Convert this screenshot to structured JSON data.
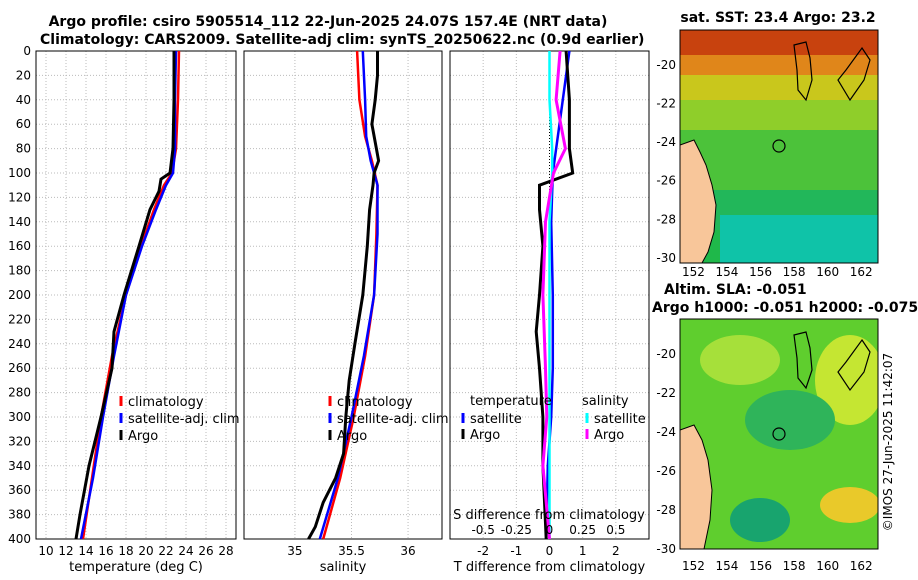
{
  "header": {
    "title_line1": "Argo profile: csiro 5905514_112 22-Jun-2025 24.07S 157.4E (NRT data)",
    "title_line2": "Climatology: CARS2009. Satellite-adj clim: synTS_20250622.nc (0.9d earlier)"
  },
  "maps": {
    "sst_title": "sat. SST: 23.4 Argo: 23.2",
    "sla_title_line1": "Altim. SLA: -0.051",
    "sla_title_line2": "Argo h1000: -0.051 h2000: -0.075",
    "x_ticks": [
      "152",
      "154",
      "156",
      "158",
      "160",
      "162"
    ],
    "y_ticks": [
      "-20",
      "-22",
      "-24",
      "-26",
      "-28",
      "-30"
    ]
  },
  "footer": {
    "credit": "©IMOS 27-Jun-2025 11:42:07"
  },
  "colors": {
    "climatology": "#ff0000",
    "satellite": "#0000ff",
    "argo": "#000000",
    "sat_salinity": "#00ffff",
    "argo_salinity": "#ff00ff",
    "land": "#f8c69a"
  },
  "chart_data": [
    {
      "type": "line",
      "xlabel": "temperature (deg C)",
      "ylabel": "",
      "xlim": [
        9,
        29
      ],
      "ylim": [
        400,
        0
      ],
      "x_ticks": [
        "10",
        "12",
        "14",
        "16",
        "18",
        "20",
        "22",
        "24",
        "26",
        "28"
      ],
      "y_ticks": [
        "0",
        "20",
        "40",
        "60",
        "80",
        "100",
        "120",
        "140",
        "160",
        "180",
        "200",
        "220",
        "240",
        "260",
        "280",
        "300",
        "320",
        "340",
        "360",
        "380",
        "400"
      ],
      "legend": [
        "climatology",
        "satellite-adj. clim",
        "Argo"
      ],
      "series": [
        {
          "name": "climatology",
          "depth": [
            0,
            40,
            80,
            100,
            110,
            130,
            160,
            200,
            250,
            300,
            350,
            400
          ],
          "values": [
            23.3,
            23.2,
            23.0,
            22.6,
            21.8,
            20.8,
            19.5,
            18.0,
            16.6,
            15.5,
            14.6,
            13.7
          ]
        },
        {
          "name": "satellite-adj. clim",
          "depth": [
            0,
            40,
            80,
            100,
            110,
            130,
            160,
            200,
            250,
            300,
            350,
            400
          ],
          "values": [
            23.0,
            22.9,
            22.9,
            22.7,
            22.0,
            21.0,
            19.6,
            18.0,
            16.8,
            15.7,
            14.7,
            13.5
          ]
        },
        {
          "name": "Argo",
          "depth": [
            0,
            40,
            80,
            100,
            105,
            115,
            130,
            160,
            200,
            230,
            260,
            300,
            340,
            380,
            400
          ],
          "values": [
            22.8,
            22.8,
            22.7,
            22.4,
            21.5,
            21.3,
            20.4,
            19.3,
            17.8,
            16.8,
            16.6,
            15.5,
            14.3,
            13.4,
            13.0
          ]
        }
      ]
    },
    {
      "type": "line",
      "xlabel": "salinity",
      "ylabel": "",
      "xlim": [
        34.55,
        36.3
      ],
      "ylim": [
        400,
        0
      ],
      "x_ticks": [
        "35",
        "35.5",
        "36"
      ],
      "legend": [
        "climatology",
        "satellite-adj. clim",
        "Argo"
      ],
      "series": [
        {
          "name": "climatology",
          "depth": [
            0,
            40,
            70,
            90,
            110,
            150,
            200,
            250,
            300,
            350,
            400
          ],
          "values": [
            35.55,
            35.57,
            35.62,
            35.68,
            35.73,
            35.72,
            35.7,
            35.62,
            35.52,
            35.4,
            35.25
          ]
        },
        {
          "name": "satellite-adj. clim",
          "depth": [
            0,
            40,
            70,
            90,
            110,
            150,
            200,
            250,
            300,
            350,
            400
          ],
          "values": [
            35.6,
            35.62,
            35.63,
            35.67,
            35.73,
            35.73,
            35.7,
            35.61,
            35.5,
            35.38,
            35.22
          ]
        },
        {
          "name": "Argo",
          "depth": [
            0,
            20,
            40,
            60,
            80,
            90,
            100,
            110,
            130,
            160,
            200,
            240,
            270,
            300,
            330,
            350,
            370,
            390,
            400
          ],
          "values": [
            35.73,
            35.73,
            35.71,
            35.68,
            35.72,
            35.74,
            35.7,
            35.69,
            35.66,
            35.64,
            35.6,
            35.53,
            35.48,
            35.45,
            35.43,
            35.36,
            35.25,
            35.18,
            35.12
          ]
        }
      ]
    },
    {
      "type": "line",
      "xlabel": "T difference from climatology",
      "ylabel": "",
      "xlim": [
        -3,
        3
      ],
      "ylim": [
        400,
        0
      ],
      "x_ticks": [
        "-2",
        "-1",
        "0",
        "1",
        "2"
      ],
      "s_axis_label": "S difference from climatology",
      "s_ticks": [
        "-0.5",
        "-0.25",
        "0",
        "0.25",
        "0.5"
      ],
      "legend_temperature_title": "temperature",
      "legend_salinity_title": "salinity",
      "legend_entries": [
        "satellite",
        "Argo",
        "satellite",
        "Argo"
      ],
      "series": [
        {
          "name": "T satellite",
          "depth": [
            0,
            20,
            60,
            100,
            140,
            200,
            260,
            300,
            340,
            400
          ],
          "values": [
            0.6,
            0.5,
            0.3,
            0.1,
            0.05,
            0.1,
            0.1,
            0.05,
            -0.05,
            -0.1
          ]
        },
        {
          "name": "T Argo",
          "depth": [
            0,
            40,
            80,
            100,
            110,
            130,
            160,
            200,
            230,
            260,
            300,
            340,
            400
          ],
          "values": [
            0.5,
            0.6,
            0.6,
            0.7,
            -0.3,
            -0.3,
            -0.2,
            -0.3,
            -0.4,
            -0.3,
            -0.2,
            -0.2,
            -0.1
          ]
        },
        {
          "name": "S satellite",
          "depth": [
            0,
            40,
            80,
            100,
            140,
            200,
            300,
            400
          ],
          "values": [
            0.0,
            0.0,
            0.02,
            0.02,
            0.0,
            0.0,
            0.0,
            0.0
          ]
        },
        {
          "name": "S Argo",
          "depth": [
            0,
            40,
            80,
            100,
            140,
            200,
            260,
            300,
            340,
            400
          ],
          "values": [
            0.08,
            0.05,
            0.12,
            0.03,
            -0.03,
            -0.05,
            -0.03,
            -0.02,
            -0.05,
            0.0
          ]
        }
      ]
    }
  ]
}
